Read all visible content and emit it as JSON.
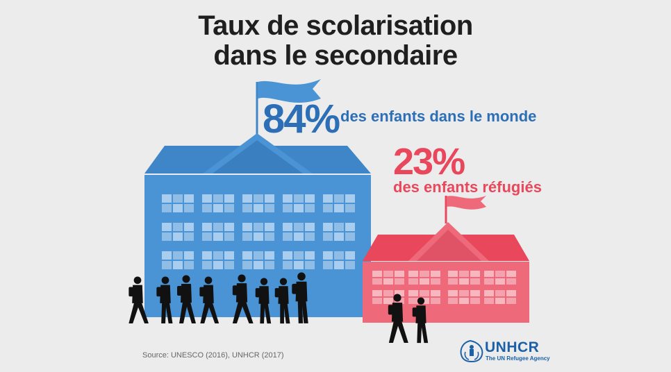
{
  "title": {
    "line1": "Taux de scolarisation",
    "line2": "dans le secondaire"
  },
  "world": {
    "percent": "84%",
    "label": "des enfants dans le monde",
    "value": 84,
    "color": "#4a93d4"
  },
  "refugees": {
    "percent": "23%",
    "label": "des enfants réfugiés",
    "value": 23,
    "color": "#ee6a7b"
  },
  "source": "Source: UNESCO (2016), UNHCR (2017)",
  "logo": {
    "name": "UNHCR",
    "tagline": "The UN Refugee Agency",
    "icon": "unhcr-emblem-icon",
    "color": "#1a61a8"
  }
}
